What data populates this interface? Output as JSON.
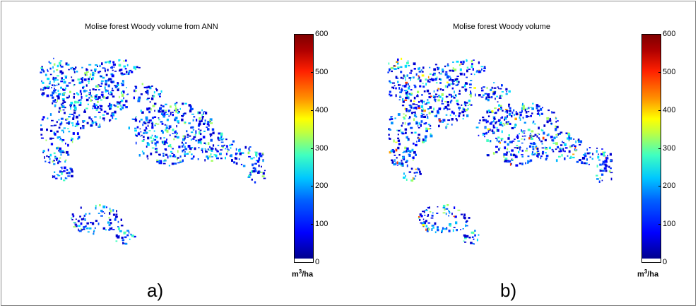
{
  "panels": [
    {
      "title": "Molise forest Woody volume from ANN",
      "letter": "a)",
      "colorbar": {
        "ticks": [
          "600",
          "500",
          "400",
          "300",
          "200",
          "100",
          "0"
        ],
        "unit_base": "m",
        "unit_exp": "3",
        "unit_tail": "/ha",
        "min": 0,
        "max": 600
      }
    },
    {
      "title": "Molise forest Woody volume",
      "letter": "b)",
      "colorbar": {
        "ticks": [
          "600",
          "500",
          "400",
          "300",
          "200",
          "100",
          "0"
        ],
        "unit_base": "m",
        "unit_exp": "3",
        "unit_tail": "/ha",
        "min": 0,
        "max": 600
      }
    }
  ],
  "colors": {
    "low": "#0000ff",
    "mid": "#00c8ff",
    "high": "#ff2000",
    "max": "#800000"
  }
}
